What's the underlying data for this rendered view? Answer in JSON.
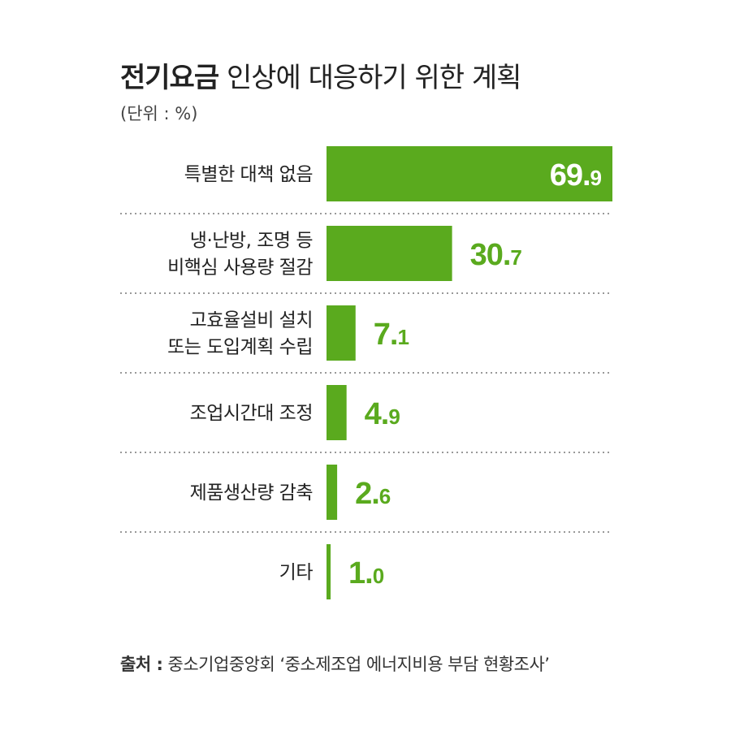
{
  "chart_data": {
    "type": "bar",
    "orientation": "horizontal",
    "title_bold": "전기요금",
    "title_rest": "인상에 대응하기 위한 계획",
    "unit": "(단위 : %)",
    "categories": [
      [
        "특별한 대책 없음"
      ],
      [
        "냉·난방, 조명 등",
        "비핵심 사용량 절감"
      ],
      [
        "고효율설비 설치",
        "또는 도입계획 수립"
      ],
      [
        "조업시간대 조정"
      ],
      [
        "제품생산량 감축"
      ],
      [
        "기타"
      ]
    ],
    "values": [
      69.9,
      30.7,
      7.1,
      4.9,
      2.6,
      1.0
    ],
    "value_labels": [
      "69.9",
      "30.7",
      "7.1",
      "4.9",
      "2.6",
      "1.0"
    ],
    "xlim": [
      0,
      69.9
    ],
    "grid": false,
    "legend": "none"
  },
  "source": {
    "label": "출처 :",
    "text": "중소기업중앙회 ‘중소제조업 에너지비용 부담 현황조사’"
  },
  "colors": {
    "bar": "#5aaa1e",
    "value_label_inside": "#ffffff",
    "value_label_outside": "#5aaa1e",
    "separator": "#999999"
  }
}
